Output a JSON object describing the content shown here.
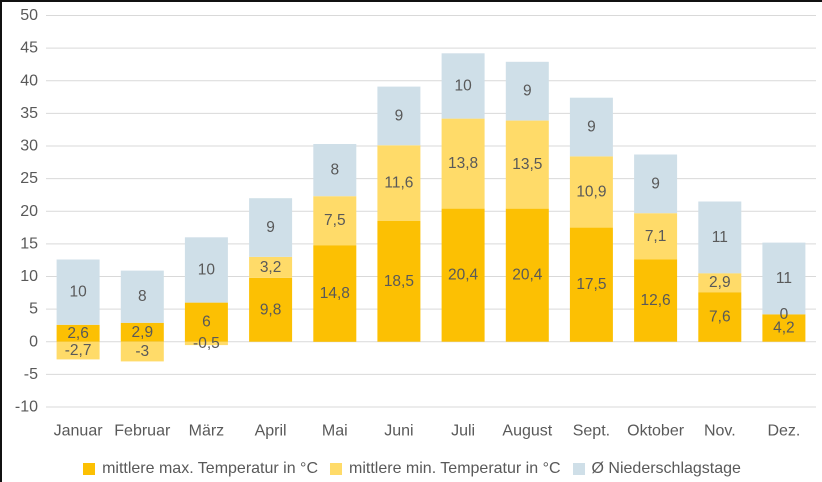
{
  "chart_data": {
    "type": "bar",
    "stacked": true,
    "title": "",
    "xlabel": "",
    "ylabel": "",
    "ylim": [
      -10,
      50
    ],
    "ytick_step": 5,
    "grid": true,
    "legend_position": "bottom",
    "grid_color": "#D9D9D9",
    "text_color": "#595959",
    "categories": [
      "Januar",
      "Februar",
      "März",
      "April",
      "Mai",
      "Juni",
      "Juli",
      "August",
      "Sept.",
      "Oktober",
      "Nov.",
      "Dez."
    ],
    "series": [
      {
        "name": "mittlere max. Temperatur in °C",
        "color": "#FCC003",
        "values": [
          2.6,
          2.9,
          6,
          9.8,
          14.8,
          18.5,
          20.4,
          20.4,
          17.5,
          12.6,
          7.6,
          4.2
        ],
        "labels": [
          "2,6",
          "2,9",
          "6",
          "9,8",
          "14,8",
          "18,5",
          "20,4",
          "20,4",
          "17,5",
          "12,6",
          "7,6",
          "4,2"
        ]
      },
      {
        "name": "mittlere min. Temperatur in °C",
        "color": "#FFDB69",
        "values": [
          -2.7,
          -3,
          -0.5,
          3.2,
          7.5,
          11.6,
          13.8,
          13.5,
          10.9,
          7.1,
          2.9,
          0
        ],
        "labels": [
          "-2,7",
          "-3",
          "-0,5",
          "3,2",
          "7,5",
          "11,6",
          "13,8",
          "13,5",
          "10,9",
          "7,1",
          "2,9",
          "0"
        ]
      },
      {
        "name": "Ø Niederschlagstage",
        "color": "#CFDFE8",
        "values": [
          10,
          8,
          10,
          9,
          8,
          9,
          10,
          9,
          9,
          9,
          11,
          11
        ],
        "labels": [
          "10",
          "8",
          "10",
          "9",
          "8",
          "9",
          "10",
          "9",
          "9",
          "9",
          "11",
          "11"
        ]
      }
    ]
  }
}
